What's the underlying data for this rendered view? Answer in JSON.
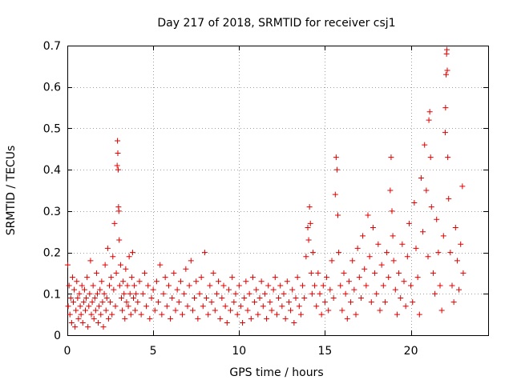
{
  "chart_data": {
    "type": "scatter",
    "title": "Day 217 of 2018, SRMTID for receiver csj1",
    "xlabel": "GPS time / hours",
    "ylabel": "SRMTID / TECUs",
    "xlim": [
      0,
      24.5
    ],
    "ylim": [
      0,
      0.7
    ],
    "xticks": [
      0,
      5,
      10,
      15,
      20
    ],
    "xtick_labels": [
      "0",
      "5",
      "10",
      "15",
      "20"
    ],
    "yticks": [
      0,
      0.1,
      0.2,
      0.3,
      0.4,
      0.5,
      0.6,
      0.7
    ],
    "ytick_labels": [
      "0",
      "0.1",
      "0.2",
      "0.3",
      "0.4",
      "0.5",
      "0.6",
      "0.7"
    ],
    "grid": true,
    "marker": "+",
    "color": "#e00000",
    "series": [
      {
        "name": "csj1",
        "points": [
          [
            0.02,
            0.17
          ],
          [
            0.05,
            0.07
          ],
          [
            0.1,
            0.12
          ],
          [
            0.15,
            0.05
          ],
          [
            0.2,
            0.09
          ],
          [
            0.25,
            0.03
          ],
          [
            0.3,
            0.14
          ],
          [
            0.35,
            0.08
          ],
          [
            0.4,
            0.11
          ],
          [
            0.45,
            0.02
          ],
          [
            0.5,
            0.06
          ],
          [
            0.55,
            0.13
          ],
          [
            0.6,
            0.09
          ],
          [
            0.65,
            0.04
          ],
          [
            0.7,
            0.1
          ],
          [
            0.75,
            0.07
          ],
          [
            0.8,
            0.05
          ],
          [
            0.85,
            0.12
          ],
          [
            0.9,
            0.03
          ],
          [
            0.95,
            0.08
          ],
          [
            1.0,
            0.11
          ],
          [
            1.05,
            0.06
          ],
          [
            1.1,
            0.09
          ],
          [
            1.15,
            0.14
          ],
          [
            1.2,
            0.02
          ],
          [
            1.25,
            0.07
          ],
          [
            1.3,
            0.1
          ],
          [
            1.35,
            0.18
          ],
          [
            1.4,
            0.05
          ],
          [
            1.45,
            0.08
          ],
          [
            1.5,
            0.12
          ],
          [
            1.55,
            0.04
          ],
          [
            1.6,
            0.09
          ],
          [
            1.65,
            0.06
          ],
          [
            1.7,
            0.15
          ],
          [
            1.75,
            0.1
          ],
          [
            1.8,
            0.03
          ],
          [
            1.85,
            0.07
          ],
          [
            1.9,
            0.11
          ],
          [
            1.95,
            0.05
          ],
          [
            2.0,
            0.13
          ],
          [
            2.05,
            0.08
          ],
          [
            2.1,
            0.02
          ],
          [
            2.15,
            0.1
          ],
          [
            2.2,
            0.17
          ],
          [
            2.25,
            0.06
          ],
          [
            2.3,
            0.09
          ],
          [
            2.35,
            0.21
          ],
          [
            2.4,
            0.04
          ],
          [
            2.45,
            0.12
          ],
          [
            2.5,
            0.08
          ],
          [
            2.55,
            0.14
          ],
          [
            2.6,
            0.05
          ],
          [
            2.65,
            0.19
          ],
          [
            2.7,
            0.11
          ],
          [
            2.75,
            0.27
          ],
          [
            2.8,
            0.07
          ],
          [
            2.85,
            0.15
          ],
          [
            2.9,
            0.41
          ],
          [
            2.92,
            0.47
          ],
          [
            2.94,
            0.44
          ],
          [
            2.96,
            0.4
          ],
          [
            2.98,
            0.31
          ],
          [
            3.0,
            0.3
          ],
          [
            3.02,
            0.23
          ],
          [
            3.05,
            0.12
          ],
          [
            3.1,
            0.17
          ],
          [
            3.15,
            0.09
          ],
          [
            3.2,
            0.06
          ],
          [
            3.25,
            0.13
          ],
          [
            3.3,
            0.1
          ],
          [
            3.35,
            0.04
          ],
          [
            3.4,
            0.16
          ],
          [
            3.45,
            0.08
          ],
          [
            3.5,
            0.12
          ],
          [
            3.55,
            0.07
          ],
          [
            3.6,
            0.19
          ],
          [
            3.65,
            0.1
          ],
          [
            3.7,
            0.05
          ],
          [
            3.75,
            0.14
          ],
          [
            3.8,
            0.2
          ],
          [
            3.85,
            0.09
          ],
          [
            3.9,
            0.12
          ],
          [
            3.95,
            0.06
          ],
          [
            4.0,
            0.1
          ],
          [
            4.1,
            0.08
          ],
          [
            4.2,
            0.13
          ],
          [
            4.3,
            0.05
          ],
          [
            4.4,
            0.1
          ],
          [
            4.5,
            0.15
          ],
          [
            4.6,
            0.07
          ],
          [
            4.7,
            0.12
          ],
          [
            4.8,
            0.04
          ],
          [
            4.9,
            0.09
          ],
          [
            5.0,
            0.11
          ],
          [
            5.1,
            0.06
          ],
          [
            5.2,
            0.13
          ],
          [
            5.3,
            0.08
          ],
          [
            5.4,
            0.17
          ],
          [
            5.5,
            0.05
          ],
          [
            5.6,
            0.1
          ],
          [
            5.7,
            0.14
          ],
          [
            5.8,
            0.07
          ],
          [
            5.9,
            0.12
          ],
          [
            6.0,
            0.04
          ],
          [
            6.1,
            0.09
          ],
          [
            6.2,
            0.15
          ],
          [
            6.3,
            0.06
          ],
          [
            6.4,
            0.11
          ],
          [
            6.5,
            0.08
          ],
          [
            6.6,
            0.13
          ],
          [
            6.7,
            0.05
          ],
          [
            6.8,
            0.1
          ],
          [
            6.9,
            0.16
          ],
          [
            7.0,
            0.07
          ],
          [
            7.1,
            0.12
          ],
          [
            7.2,
            0.18
          ],
          [
            7.3,
            0.06
          ],
          [
            7.4,
            0.09
          ],
          [
            7.5,
            0.13
          ],
          [
            7.6,
            0.04
          ],
          [
            7.7,
            0.1
          ],
          [
            7.8,
            0.14
          ],
          [
            7.9,
            0.07
          ],
          [
            8.0,
            0.2
          ],
          [
            8.1,
            0.09
          ],
          [
            8.2,
            0.05
          ],
          [
            8.3,
            0.12
          ],
          [
            8.4,
            0.08
          ],
          [
            8.5,
            0.15
          ],
          [
            8.6,
            0.06
          ],
          [
            8.7,
            0.1
          ],
          [
            8.8,
            0.13
          ],
          [
            8.9,
            0.04
          ],
          [
            9.0,
            0.09
          ],
          [
            9.1,
            0.12
          ],
          [
            9.2,
            0.07
          ],
          [
            9.3,
            0.03
          ],
          [
            9.4,
            0.11
          ],
          [
            9.5,
            0.06
          ],
          [
            9.6,
            0.14
          ],
          [
            9.7,
            0.08
          ],
          [
            9.8,
            0.1
          ],
          [
            9.9,
            0.05
          ],
          [
            10.0,
            0.12
          ],
          [
            10.1,
            0.07
          ],
          [
            10.2,
            0.03
          ],
          [
            10.3,
            0.09
          ],
          [
            10.4,
            0.13
          ],
          [
            10.5,
            0.06
          ],
          [
            10.6,
            0.1
          ],
          [
            10.7,
            0.04
          ],
          [
            10.8,
            0.14
          ],
          [
            10.9,
            0.08
          ],
          [
            11.0,
            0.11
          ],
          [
            11.1,
            0.05
          ],
          [
            11.2,
            0.09
          ],
          [
            11.3,
            0.13
          ],
          [
            11.4,
            0.07
          ],
          [
            11.5,
            0.1
          ],
          [
            11.6,
            0.04
          ],
          [
            11.7,
            0.12
          ],
          [
            11.8,
            0.08
          ],
          [
            11.9,
            0.06
          ],
          [
            12.0,
            0.11
          ],
          [
            12.1,
            0.14
          ],
          [
            12.2,
            0.05
          ],
          [
            12.3,
            0.09
          ],
          [
            12.4,
            0.12
          ],
          [
            12.5,
            0.07
          ],
          [
            12.6,
            0.1
          ],
          [
            12.7,
            0.04
          ],
          [
            12.8,
            0.13
          ],
          [
            12.9,
            0.08
          ],
          [
            13.0,
            0.06
          ],
          [
            13.1,
            0.11
          ],
          [
            13.2,
            0.03
          ],
          [
            13.3,
            0.09
          ],
          [
            13.4,
            0.14
          ],
          [
            13.5,
            0.07
          ],
          [
            13.6,
            0.05
          ],
          [
            13.7,
            0.12
          ],
          [
            13.8,
            0.09
          ],
          [
            13.9,
            0.19
          ],
          [
            14.0,
            0.26
          ],
          [
            14.05,
            0.23
          ],
          [
            14.1,
            0.31
          ],
          [
            14.15,
            0.27
          ],
          [
            14.2,
            0.15
          ],
          [
            14.25,
            0.1
          ],
          [
            14.3,
            0.2
          ],
          [
            14.4,
            0.12
          ],
          [
            14.5,
            0.07
          ],
          [
            14.6,
            0.15
          ],
          [
            14.7,
            0.1
          ],
          [
            14.8,
            0.05
          ],
          [
            14.9,
            0.12
          ],
          [
            15.0,
            0.08
          ],
          [
            15.1,
            0.14
          ],
          [
            15.2,
            0.06
          ],
          [
            15.3,
            0.11
          ],
          [
            15.4,
            0.18
          ],
          [
            15.5,
            0.09
          ],
          [
            15.6,
            0.34
          ],
          [
            15.65,
            0.43
          ],
          [
            15.7,
            0.4
          ],
          [
            15.75,
            0.29
          ],
          [
            15.8,
            0.2
          ],
          [
            15.9,
            0.12
          ],
          [
            16.0,
            0.06
          ],
          [
            16.1,
            0.15
          ],
          [
            16.2,
            0.1
          ],
          [
            16.3,
            0.04
          ],
          [
            16.4,
            0.13
          ],
          [
            16.5,
            0.08
          ],
          [
            16.6,
            0.18
          ],
          [
            16.7,
            0.11
          ],
          [
            16.8,
            0.05
          ],
          [
            16.9,
            0.21
          ],
          [
            17.0,
            0.14
          ],
          [
            17.1,
            0.09
          ],
          [
            17.2,
            0.24
          ],
          [
            17.3,
            0.16
          ],
          [
            17.4,
            0.12
          ],
          [
            17.5,
            0.29
          ],
          [
            17.6,
            0.19
          ],
          [
            17.7,
            0.08
          ],
          [
            17.8,
            0.26
          ],
          [
            17.9,
            0.15
          ],
          [
            18.0,
            0.1
          ],
          [
            18.1,
            0.22
          ],
          [
            18.2,
            0.06
          ],
          [
            18.3,
            0.17
          ],
          [
            18.4,
            0.12
          ],
          [
            18.5,
            0.08
          ],
          [
            18.6,
            0.2
          ],
          [
            18.7,
            0.14
          ],
          [
            18.8,
            0.35
          ],
          [
            18.85,
            0.43
          ],
          [
            18.9,
            0.3
          ],
          [
            18.95,
            0.24
          ],
          [
            19.0,
            0.18
          ],
          [
            19.1,
            0.11
          ],
          [
            19.2,
            0.05
          ],
          [
            19.3,
            0.15
          ],
          [
            19.4,
            0.09
          ],
          [
            19.5,
            0.22
          ],
          [
            19.6,
            0.13
          ],
          [
            19.7,
            0.07
          ],
          [
            19.8,
            0.19
          ],
          [
            19.9,
            0.27
          ],
          [
            20.0,
            0.12
          ],
          [
            20.1,
            0.08
          ],
          [
            20.2,
            0.32
          ],
          [
            20.3,
            0.21
          ],
          [
            20.4,
            0.14
          ],
          [
            20.5,
            0.05
          ],
          [
            20.6,
            0.38
          ],
          [
            20.7,
            0.25
          ],
          [
            20.8,
            0.46
          ],
          [
            20.9,
            0.35
          ],
          [
            21.0,
            0.19
          ],
          [
            21.05,
            0.52
          ],
          [
            21.1,
            0.54
          ],
          [
            21.15,
            0.43
          ],
          [
            21.2,
            0.31
          ],
          [
            21.3,
            0.15
          ],
          [
            21.4,
            0.1
          ],
          [
            21.5,
            0.28
          ],
          [
            21.6,
            0.2
          ],
          [
            21.7,
            0.12
          ],
          [
            21.8,
            0.06
          ],
          [
            21.9,
            0.24
          ],
          [
            22.0,
            0.49
          ],
          [
            22.02,
            0.55
          ],
          [
            22.05,
            0.63
          ],
          [
            22.08,
            0.68
          ],
          [
            22.1,
            0.69
          ],
          [
            22.12,
            0.64
          ],
          [
            22.15,
            0.43
          ],
          [
            22.2,
            0.33
          ],
          [
            22.3,
            0.2
          ],
          [
            22.4,
            0.12
          ],
          [
            22.5,
            0.08
          ],
          [
            22.6,
            0.26
          ],
          [
            22.7,
            0.18
          ],
          [
            22.8,
            0.11
          ],
          [
            22.9,
            0.22
          ],
          [
            23.0,
            0.36
          ],
          [
            23.05,
            0.15
          ]
        ]
      }
    ]
  }
}
